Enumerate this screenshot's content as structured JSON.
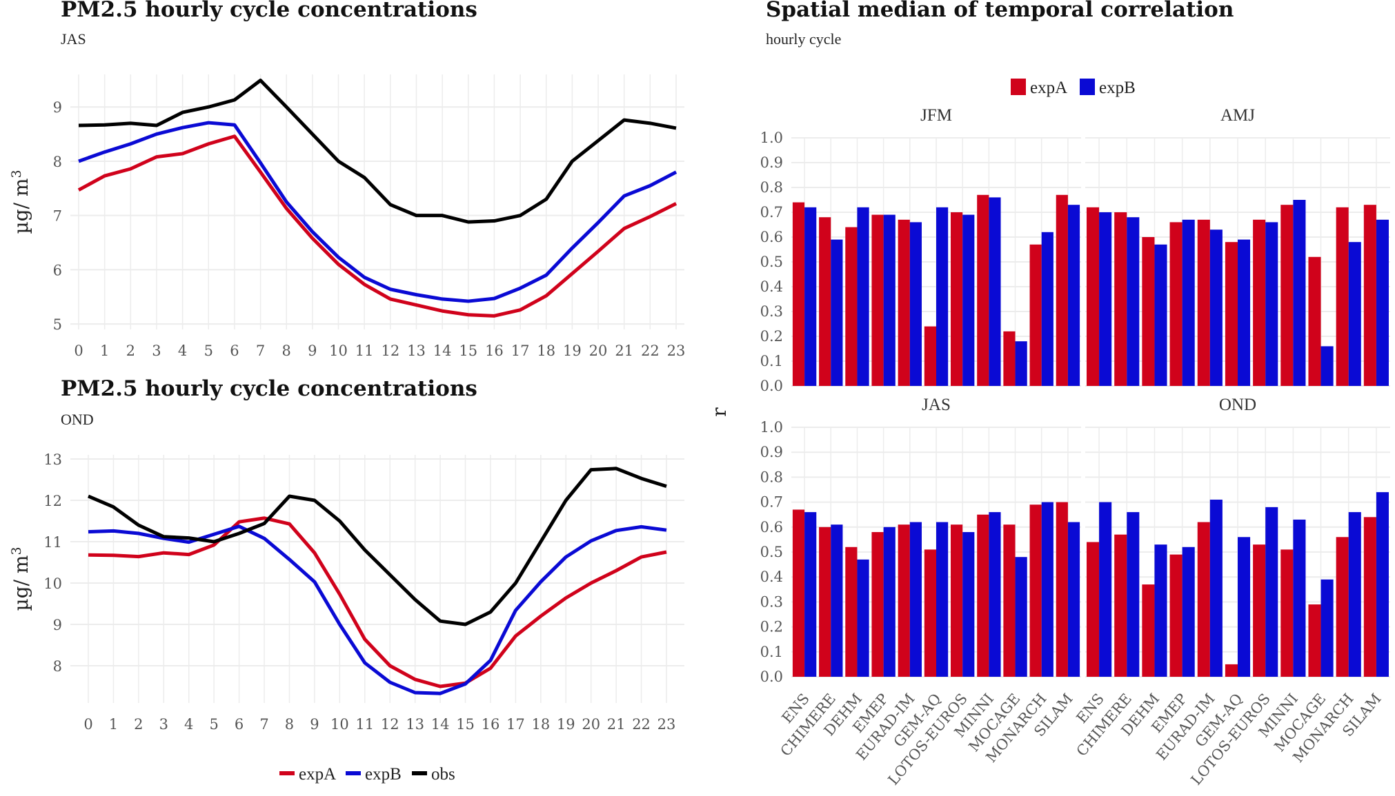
{
  "chart_data": [
    {
      "type": "line",
      "title": "PM2.5 hourly cycle concentrations",
      "subtitle": "JAS",
      "xlabel": "",
      "ylabel": "µg/ m3",
      "x": [
        0,
        1,
        2,
        3,
        4,
        5,
        6,
        7,
        8,
        9,
        10,
        11,
        12,
        13,
        14,
        15,
        16,
        17,
        18,
        19,
        20,
        21,
        22,
        23
      ],
      "ylim": [
        4.9,
        9.6
      ],
      "yticks": [
        5,
        6,
        7,
        8,
        9
      ],
      "grid": true,
      "series": [
        {
          "name": "expA",
          "color": "#d0021b",
          "values": [
            7.47,
            7.73,
            7.86,
            8.08,
            8.14,
            8.32,
            8.46,
            7.8,
            7.13,
            6.58,
            6.1,
            5.73,
            5.46,
            5.35,
            5.24,
            5.17,
            5.15,
            5.26,
            5.52,
            5.93,
            6.34,
            6.76,
            6.98,
            7.22
          ]
        },
        {
          "name": "expB",
          "color": "#0a0ad4",
          "values": [
            8.0,
            8.17,
            8.32,
            8.5,
            8.62,
            8.71,
            8.67,
            7.97,
            7.25,
            6.7,
            6.23,
            5.86,
            5.64,
            5.54,
            5.46,
            5.42,
            5.47,
            5.66,
            5.9,
            6.4,
            6.87,
            7.36,
            7.55,
            7.8
          ]
        },
        {
          "name": "obs",
          "color": "#000000",
          "values": [
            8.66,
            8.67,
            8.7,
            8.66,
            8.9,
            9.0,
            9.13,
            9.49,
            9.0,
            8.5,
            8.0,
            7.7,
            7.2,
            7.0,
            7.0,
            6.88,
            6.9,
            7.0,
            7.3,
            8.0,
            8.38,
            8.76,
            8.7,
            8.61
          ]
        }
      ]
    },
    {
      "type": "line",
      "title": "PM2.5 hourly cycle concentrations",
      "subtitle": "OND",
      "xlabel": "",
      "ylabel": "µg/ m3",
      "x": [
        0,
        1,
        2,
        3,
        4,
        5,
        6,
        7,
        8,
        9,
        10,
        11,
        12,
        13,
        14,
        15,
        16,
        17,
        18,
        19,
        20,
        21,
        22,
        23
      ],
      "ylim": [
        7.1,
        13.1
      ],
      "yticks": [
        8,
        9,
        10,
        11,
        12,
        13
      ],
      "grid": true,
      "legend": {
        "position": "bottom",
        "entries": [
          "expA",
          "expB",
          "obs"
        ]
      },
      "series": [
        {
          "name": "expA",
          "color": "#d0021b",
          "values": [
            10.68,
            10.67,
            10.64,
            10.73,
            10.69,
            10.92,
            11.48,
            11.57,
            11.43,
            10.73,
            9.73,
            8.64,
            8.0,
            7.67,
            7.5,
            7.58,
            7.94,
            8.72,
            9.2,
            9.64,
            10.0,
            10.3,
            10.63,
            10.75
          ]
        },
        {
          "name": "expB",
          "color": "#0a0ad4",
          "values": [
            11.24,
            11.26,
            11.2,
            11.08,
            10.99,
            11.18,
            11.37,
            11.08,
            10.57,
            10.03,
            9.0,
            8.07,
            7.6,
            7.35,
            7.33,
            7.56,
            8.13,
            9.34,
            10.03,
            10.63,
            11.02,
            11.27,
            11.36,
            11.28
          ]
        },
        {
          "name": "obs",
          "color": "#000000",
          "values": [
            12.1,
            11.84,
            11.4,
            11.12,
            11.09,
            11.0,
            11.2,
            11.44,
            12.1,
            12.0,
            11.5,
            10.8,
            10.2,
            9.6,
            9.08,
            9.0,
            9.3,
            10.0,
            11.0,
            12.0,
            12.74,
            12.77,
            12.53,
            12.34
          ]
        }
      ]
    },
    {
      "type": "bar",
      "title": "Spatial median of temporal correlation",
      "subtitle": "hourly cycle",
      "ylabel": "r",
      "ylim": [
        0,
        1.0
      ],
      "yticks": [
        "0.0",
        "0.1",
        "0.2",
        "0.3",
        "0.4",
        "0.5",
        "0.6",
        "0.7",
        "0.8",
        "0.9",
        "1.0"
      ],
      "grid": true,
      "legend": {
        "position": "top",
        "entries": [
          "expA",
          "expB"
        ]
      },
      "categories": [
        "ENS",
        "CHIMERE",
        "DEHM",
        "EMEP",
        "EURAD-IM",
        "GEM-AQ",
        "LOTOS-EUROS",
        "MINNI",
        "MOCAGE",
        "MONARCH",
        "SILAM"
      ],
      "facets": [
        {
          "name": "JFM",
          "series": [
            {
              "name": "expA",
              "color": "#d0021b",
              "values": [
                0.74,
                0.68,
                0.64,
                0.69,
                0.67,
                0.24,
                0.7,
                0.77,
                0.22,
                0.57,
                0.77
              ]
            },
            {
              "name": "expB",
              "color": "#0a0ad4",
              "values": [
                0.72,
                0.59,
                0.72,
                0.69,
                0.66,
                0.72,
                0.69,
                0.76,
                0.18,
                0.62,
                0.73
              ]
            }
          ]
        },
        {
          "name": "AMJ",
          "series": [
            {
              "name": "expA",
              "color": "#d0021b",
              "values": [
                0.72,
                0.7,
                0.6,
                0.66,
                0.67,
                0.58,
                0.67,
                0.73,
                0.52,
                0.72,
                0.73
              ]
            },
            {
              "name": "expB",
              "color": "#0a0ad4",
              "values": [
                0.7,
                0.68,
                0.57,
                0.67,
                0.63,
                0.59,
                0.66,
                0.75,
                0.16,
                0.58,
                0.67
              ]
            }
          ]
        },
        {
          "name": "JAS",
          "series": [
            {
              "name": "expA",
              "color": "#d0021b",
              "values": [
                0.67,
                0.6,
                0.52,
                0.58,
                0.61,
                0.51,
                0.61,
                0.65,
                0.61,
                0.69,
                0.7
              ]
            },
            {
              "name": "expB",
              "color": "#0a0ad4",
              "values": [
                0.66,
                0.61,
                0.47,
                0.6,
                0.62,
                0.62,
                0.58,
                0.66,
                0.48,
                0.7,
                0.62
              ]
            }
          ]
        },
        {
          "name": "OND",
          "series": [
            {
              "name": "expA",
              "color": "#d0021b",
              "values": [
                0.54,
                0.57,
                0.37,
                0.49,
                0.62,
                0.05,
                0.53,
                0.51,
                0.29,
                0.56,
                0.64
              ]
            },
            {
              "name": "expB",
              "color": "#0a0ad4",
              "values": [
                0.7,
                0.66,
                0.53,
                0.52,
                0.71,
                0.56,
                0.68,
                0.63,
                0.39,
                0.66,
                0.74
              ]
            }
          ]
        }
      ]
    }
  ]
}
